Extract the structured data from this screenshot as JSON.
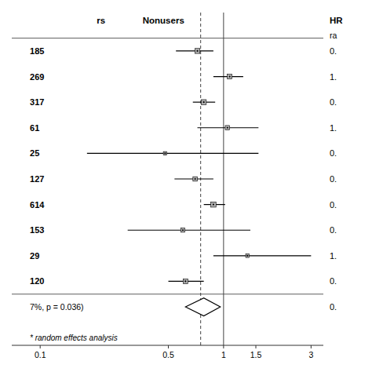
{
  "chart_data": {
    "type": "forest",
    "log": "x",
    "xlim": [
      0.07,
      3.5
    ],
    "xticks": [
      0.1,
      0.5,
      1,
      1.5,
      3
    ],
    "header_left": "rs",
    "header_middle": "Nonusers",
    "header_right": "HR",
    "subheader_right": "ra",
    "studies": [
      {
        "n": 185,
        "hr": 0.72,
        "ci_low": 0.55,
        "ci_high": 0.88,
        "weight": 0.02,
        "hr_text": "0."
      },
      {
        "n": 269,
        "hr": 1.08,
        "ci_low": 0.88,
        "ci_high": 1.28,
        "weight": 0.018,
        "hr_text": "1."
      },
      {
        "n": 317,
        "hr": 0.78,
        "ci_low": 0.68,
        "ci_high": 0.9,
        "weight": 0.02,
        "hr_text": "0."
      },
      {
        "n": 61,
        "hr": 1.05,
        "ci_low": 0.72,
        "ci_high": 1.55,
        "weight": 0.016,
        "hr_text": "1."
      },
      {
        "n": 25,
        "hr": 0.48,
        "ci_low": 0.18,
        "ci_high": 1.55,
        "weight": 0.01,
        "hr_text": "0."
      },
      {
        "n": 127,
        "hr": 0.7,
        "ci_low": 0.54,
        "ci_high": 0.88,
        "weight": 0.016,
        "hr_text": "0."
      },
      {
        "n": 614,
        "hr": 0.88,
        "ci_low": 0.78,
        "ci_high": 1.02,
        "weight": 0.022,
        "hr_text": "0."
      },
      {
        "n": 153,
        "hr": 0.6,
        "ci_low": 0.3,
        "ci_high": 1.4,
        "weight": 0.014,
        "hr_text": "0."
      },
      {
        "n": 29,
        "hr": 1.35,
        "ci_low": 0.88,
        "ci_high": 3.0,
        "weight": 0.01,
        "hr_text": "1."
      },
      {
        "n": 120,
        "hr": 0.62,
        "ci_low": 0.5,
        "ci_high": 0.78,
        "weight": 0.018,
        "hr_text": "0."
      }
    ],
    "summary": {
      "label": "7%, p = 0.036)",
      "hr": 0.78,
      "ci_low": 0.62,
      "ci_high": 0.96,
      "hr_text": "0.",
      "color": "white"
    },
    "footer": "* random effects analysis",
    "reference_lines": [
      {
        "value": 1,
        "line_style": "solid"
      },
      {
        "value": 0.75,
        "line_style": "dashed"
      }
    ],
    "color": "#b0b0b0"
  }
}
